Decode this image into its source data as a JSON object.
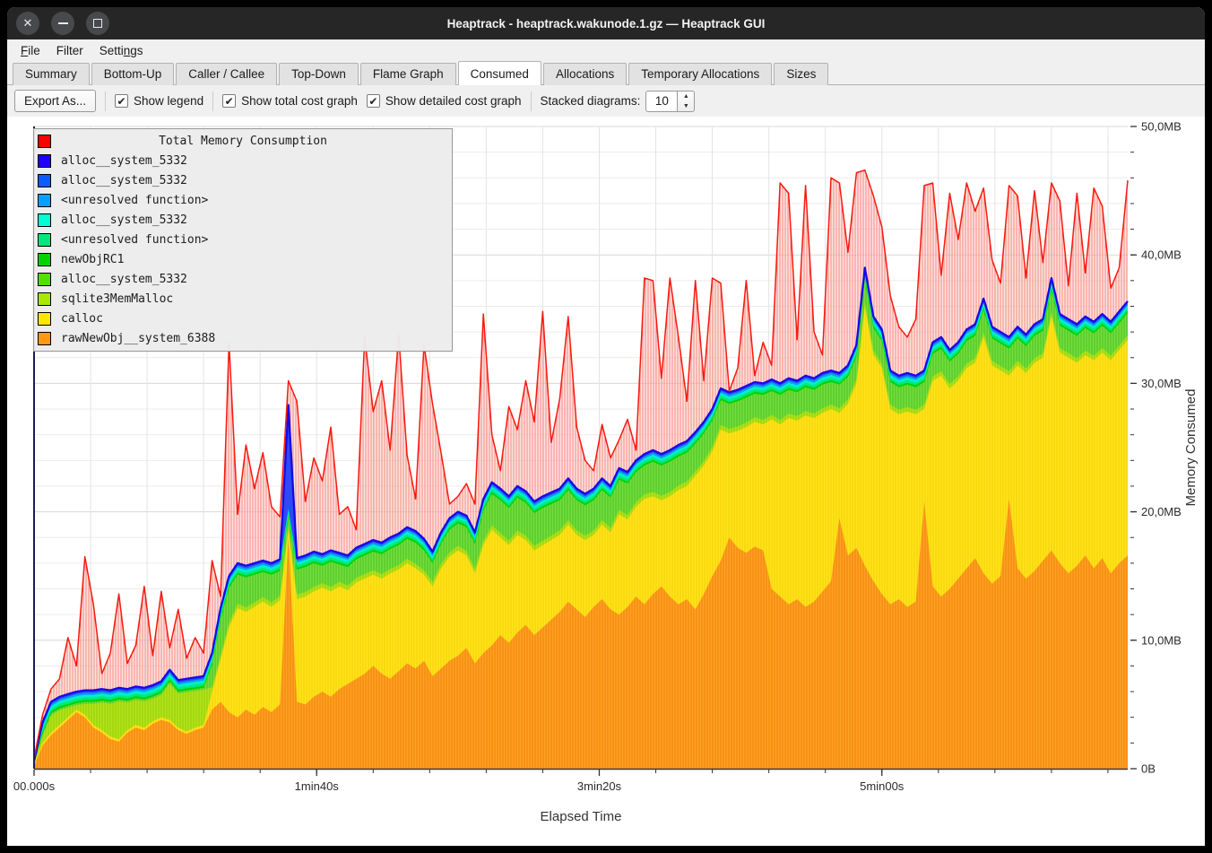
{
  "window": {
    "title": "Heaptrack - heaptrack.wakunode.1.gz — Heaptrack GUI"
  },
  "titlebar_icons": [
    "close-icon",
    "minimize-icon",
    "maximize-icon"
  ],
  "menu": {
    "items": [
      {
        "label": "File",
        "underline": 0
      },
      {
        "label": "Filter",
        "underline": -1
      },
      {
        "label": "Settings",
        "underline": 5
      }
    ]
  },
  "tabs": [
    {
      "label": "Summary",
      "active": false
    },
    {
      "label": "Bottom-Up",
      "active": false
    },
    {
      "label": "Caller / Callee",
      "active": false
    },
    {
      "label": "Top-Down",
      "active": false
    },
    {
      "label": "Flame Graph",
      "active": false
    },
    {
      "label": "Consumed",
      "active": true
    },
    {
      "label": "Allocations",
      "active": false
    },
    {
      "label": "Temporary Allocations",
      "active": false
    },
    {
      "label": "Sizes",
      "active": false
    }
  ],
  "toolbar": {
    "export_label": "Export As...",
    "checkboxes": [
      {
        "label": "Show legend",
        "checked": true
      },
      {
        "label": "Show total cost graph",
        "checked": true
      },
      {
        "label": "Show detailed cost graph",
        "checked": true
      }
    ],
    "stacked_label": "Stacked diagrams:",
    "stacked_value": "10",
    "check_glyph": "✔"
  },
  "legend": {
    "title": "Total Memory Consumption",
    "title_color": "#ff0000",
    "items": [
      {
        "label": "alloc__system_5332",
        "color": "#1f00ff"
      },
      {
        "label": "alloc__system_5332",
        "color": "#0a5cff"
      },
      {
        "label": "<unresolved function>",
        "color": "#00a3ff"
      },
      {
        "label": "alloc__system_5332",
        "color": "#00ffd5"
      },
      {
        "label": "<unresolved function>",
        "color": "#00e87d"
      },
      {
        "label": "newObjRC1",
        "color": "#00d400"
      },
      {
        "label": "alloc__system_5332",
        "color": "#52e000"
      },
      {
        "label": "sqlite3MemMalloc",
        "color": "#a8e800"
      },
      {
        "label": "calloc",
        "color": "#ffe800"
      },
      {
        "label": "rawNewObj__system_6388",
        "color": "#ff9914"
      }
    ]
  },
  "chart_data": {
    "type": "area",
    "title": "Total Memory Consumption",
    "xlabel": "Elapsed Time",
    "ylabel": "Memory Consumed",
    "xlim": [
      0,
      387
    ],
    "ylim": [
      0,
      50
    ],
    "grid": true,
    "legend_position": "top-left",
    "x_tick_labels": [
      {
        "t": 0,
        "label": "00.000s"
      },
      {
        "t": 100,
        "label": "1min40s"
      },
      {
        "t": 200,
        "label": "3min20s"
      },
      {
        "t": 300,
        "label": "5min00s"
      }
    ],
    "y_tick_labels": [
      {
        "v": 0,
        "label": "0B"
      },
      {
        "v": 10,
        "label": "10,0MB"
      },
      {
        "v": 20,
        "label": "20,0MB"
      },
      {
        "v": 30,
        "label": "30,0MB"
      },
      {
        "v": 40,
        "label": "40,0MB"
      },
      {
        "v": 50,
        "label": "50,0MB"
      }
    ],
    "y_minor_step": 2,
    "x_minor_step": 20,
    "x_start": 0,
    "x_step": 3,
    "units": "MB",
    "series": {
      "rawNewObj__system_6388_top": [
        0.2,
        1.8,
        2.6,
        3.2,
        3.8,
        4.4,
        4.0,
        3.2,
        2.8,
        2.3,
        2.1,
        2.8,
        3.2,
        3.0,
        3.5,
        3.8,
        3.6,
        3.0,
        2.7,
        3.0,
        3.2,
        4.6,
        5.2,
        4.4,
        4.0,
        4.6,
        4.2,
        4.8,
        4.4,
        5.0,
        18.0,
        5.2,
        5.0,
        5.6,
        6.0,
        5.6,
        6.2,
        6.6,
        7.0,
        7.4,
        8.0,
        7.4,
        7.0,
        7.6,
        8.2,
        7.8,
        8.4,
        7.2,
        7.8,
        8.4,
        8.8,
        9.4,
        8.2,
        9.0,
        9.6,
        10.4,
        9.8,
        10.6,
        11.2,
        10.4,
        11.0,
        11.6,
        12.2,
        13.0,
        12.4,
        11.8,
        12.6,
        13.2,
        12.4,
        12.0,
        12.6,
        13.4,
        12.8,
        13.6,
        14.2,
        13.4,
        12.8,
        13.2,
        12.4,
        13.6,
        15.0,
        16.2,
        18.0,
        17.2,
        16.8,
        17.3,
        17.0,
        14.0,
        13.4,
        12.8,
        13.2,
        12.6,
        13.0,
        13.8,
        14.6,
        19.5,
        16.6,
        17.2,
        15.8,
        14.6,
        13.6,
        12.8,
        13.2,
        12.6,
        13.0,
        20.8,
        14.2,
        13.4,
        14.0,
        14.8,
        15.6,
        16.4,
        15.2,
        14.4,
        15.0,
        21.0,
        15.6,
        14.8,
        15.4,
        16.2,
        17.0,
        16.0,
        15.2,
        15.8,
        16.6,
        15.6,
        16.4,
        15.2,
        16.0,
        16.6
      ],
      "calloc_top": [
        0.4,
        2.0,
        2.8,
        3.4,
        4.0,
        4.6,
        4.2,
        3.4,
        3.0,
        2.5,
        2.3,
        3.0,
        3.4,
        3.2,
        3.7,
        4.0,
        3.8,
        3.2,
        2.9,
        3.2,
        3.4,
        6.0,
        8.5,
        11.0,
        12.5,
        12.2,
        12.6,
        13.0,
        12.6,
        13.1,
        18.6,
        13.2,
        13.4,
        13.8,
        14.1,
        13.8,
        14.2,
        13.9,
        14.5,
        14.8,
        15.1,
        14.8,
        15.2,
        15.5,
        16.0,
        15.6,
        15.1,
        14.2,
        15.6,
        16.5,
        17.0,
        16.6,
        15.2,
        17.4,
        18.6,
        18.0,
        17.4,
        18.2,
        17.8,
        17.0,
        17.4,
        17.8,
        18.2,
        19.0,
        18.2,
        17.8,
        18.2,
        19.0,
        18.4,
        19.8,
        19.4,
        20.4,
        21.0,
        21.2,
        20.9,
        21.2,
        21.7,
        22.0,
        22.8,
        23.6,
        24.7,
        26.4,
        26.1,
        26.3,
        26.6,
        27.0,
        26.8,
        27.2,
        26.8,
        27.3,
        27.1,
        27.5,
        27.3,
        27.7,
        28.0,
        27.7,
        28.4,
        30.0,
        36.0,
        32.2,
        31.2,
        28.0,
        27.6,
        27.8,
        27.6,
        28.0,
        30.2,
        30.6,
        29.6,
        30.2,
        31.2,
        31.6,
        33.6,
        31.4,
        31.0,
        30.6,
        31.4,
        30.8,
        31.6,
        32.0,
        35.2,
        32.4,
        32.0,
        31.6,
        32.2,
        31.8,
        32.4,
        31.8,
        32.6,
        33.4
      ],
      "solid_stack_top": [
        0.6,
        3.6,
        5.2,
        5.6,
        5.8,
        6.0,
        6.1,
        6.1,
        6.2,
        6.1,
        6.3,
        6.2,
        6.4,
        6.3,
        6.5,
        6.8,
        7.7,
        6.9,
        7.0,
        7.1,
        7.2,
        9.0,
        12.5,
        15.0,
        16.0,
        15.8,
        16.0,
        16.2,
        16.0,
        16.3,
        28.3,
        16.4,
        16.6,
        16.9,
        16.7,
        17.0,
        16.8,
        16.6,
        17.2,
        17.5,
        17.8,
        17.6,
        18.0,
        18.3,
        18.8,
        18.5,
        17.9,
        16.9,
        18.4,
        19.5,
        20.0,
        19.7,
        18.4,
        21.0,
        22.3,
        21.8,
        21.2,
        22.0,
        21.6,
        20.8,
        21.2,
        21.5,
        21.8,
        22.6,
        21.8,
        21.4,
        21.8,
        22.6,
        22.0,
        23.4,
        23.1,
        24.0,
        24.5,
        24.8,
        24.5,
        24.8,
        25.2,
        25.5,
        26.2,
        27.0,
        28.0,
        29.6,
        29.3,
        29.5,
        29.8,
        30.1,
        30.0,
        30.3,
        30.0,
        30.4,
        30.2,
        30.6,
        30.4,
        30.8,
        31.0,
        30.8,
        31.4,
        33.0,
        39.0,
        35.2,
        34.2,
        31.0,
        30.6,
        30.8,
        30.6,
        31.0,
        33.2,
        33.6,
        32.6,
        33.2,
        34.2,
        34.6,
        36.6,
        34.4,
        34.0,
        33.6,
        34.4,
        33.8,
        34.6,
        35.0,
        38.2,
        35.4,
        35.0,
        34.6,
        35.2,
        34.8,
        35.4,
        34.8,
        35.6,
        36.4
      ],
      "total_memory_consumption": [
        0.8,
        4.2,
        6.2,
        7.0,
        10.2,
        8.0,
        16.5,
        12.8,
        7.4,
        9.0,
        13.6,
        8.2,
        9.6,
        14.2,
        8.8,
        13.8,
        9.4,
        12.4,
        8.6,
        10.2,
        9.0,
        16.2,
        13.4,
        33.2,
        19.8,
        25.2,
        21.8,
        24.6,
        20.4,
        19.6,
        30.2,
        28.6,
        20.8,
        24.2,
        22.4,
        26.6,
        19.8,
        20.4,
        18.6,
        33.6,
        27.8,
        30.2,
        24.8,
        33.8,
        24.4,
        21.0,
        33.0,
        28.4,
        24.6,
        20.6,
        21.2,
        22.2,
        20.6,
        35.4,
        26.0,
        23.2,
        28.2,
        26.4,
        30.2,
        27.0,
        35.6,
        25.4,
        28.8,
        35.2,
        26.6,
        24.0,
        23.2,
        26.8,
        24.2,
        25.6,
        27.2,
        24.8,
        38.2,
        38.0,
        30.4,
        38.2,
        33.6,
        28.6,
        38.0,
        30.2,
        38.2,
        37.8,
        29.4,
        31.2,
        38.0,
        30.6,
        33.2,
        31.4,
        45.6,
        44.8,
        33.4,
        45.4,
        34.0,
        32.2,
        46.0,
        45.6,
        40.2,
        46.4,
        46.6,
        44.6,
        42.2,
        36.8,
        34.4,
        33.6,
        35.0,
        45.4,
        45.6,
        38.4,
        44.8,
        41.2,
        45.6,
        43.4,
        45.2,
        39.6,
        37.8,
        45.4,
        44.6,
        38.2,
        45.0,
        39.4,
        45.6,
        44.2,
        37.6,
        44.8,
        38.6,
        45.2,
        43.8,
        37.4,
        39.0,
        45.8
      ]
    },
    "band_model": {
      "note": "thin stacked bands between sqlite3MemMalloc and the dark-blue stack top",
      "regionA_end_index": 20,
      "regionA_sqlite_gap_below_stack_top": 1.05,
      "sqlite_offset_above_calloc": 0.35,
      "green_gap_below_stack_top": 0.9,
      "green_top_overrides": {
        "30": 19.6
      },
      "strip_offsets_above_green": {
        "newObjRC1": 0.15,
        "unresolved_spring": 0.35,
        "alloc_turquoise": 0.55,
        "unresolved_lightblue": 0.7
      }
    },
    "colors": {
      "total_line": "#f8190e",
      "total_fill_line": "#f25046",
      "total_fill_bg": "#fac8c4",
      "stack_top_line": "#1708e8",
      "stack_top_band": "#2e49f5",
      "lightblue": "#00a6f2",
      "turquoise": "#00f0c8",
      "spring": "#00e87d",
      "newObjRC1": "#00d400",
      "green_base": "#77dd44",
      "green_stripe": "#44c414",
      "sqlite_base": "#b2e519",
      "sqlite_stripe": "#98c90a",
      "calloc_base": "#ffe51a",
      "calloc_stripe": "#f3cd08",
      "orange_base": "#ffa128",
      "orange_stripe": "#ef8400",
      "grid_minor": "#ebebeb",
      "grid_major": "#d7d7d7",
      "grid_vert": "#e4e4e4",
      "axis_left": "#1a1a5e",
      "axis_bottom": "#39344a",
      "tick": "#333333",
      "label": "#2b2b2b"
    }
  }
}
